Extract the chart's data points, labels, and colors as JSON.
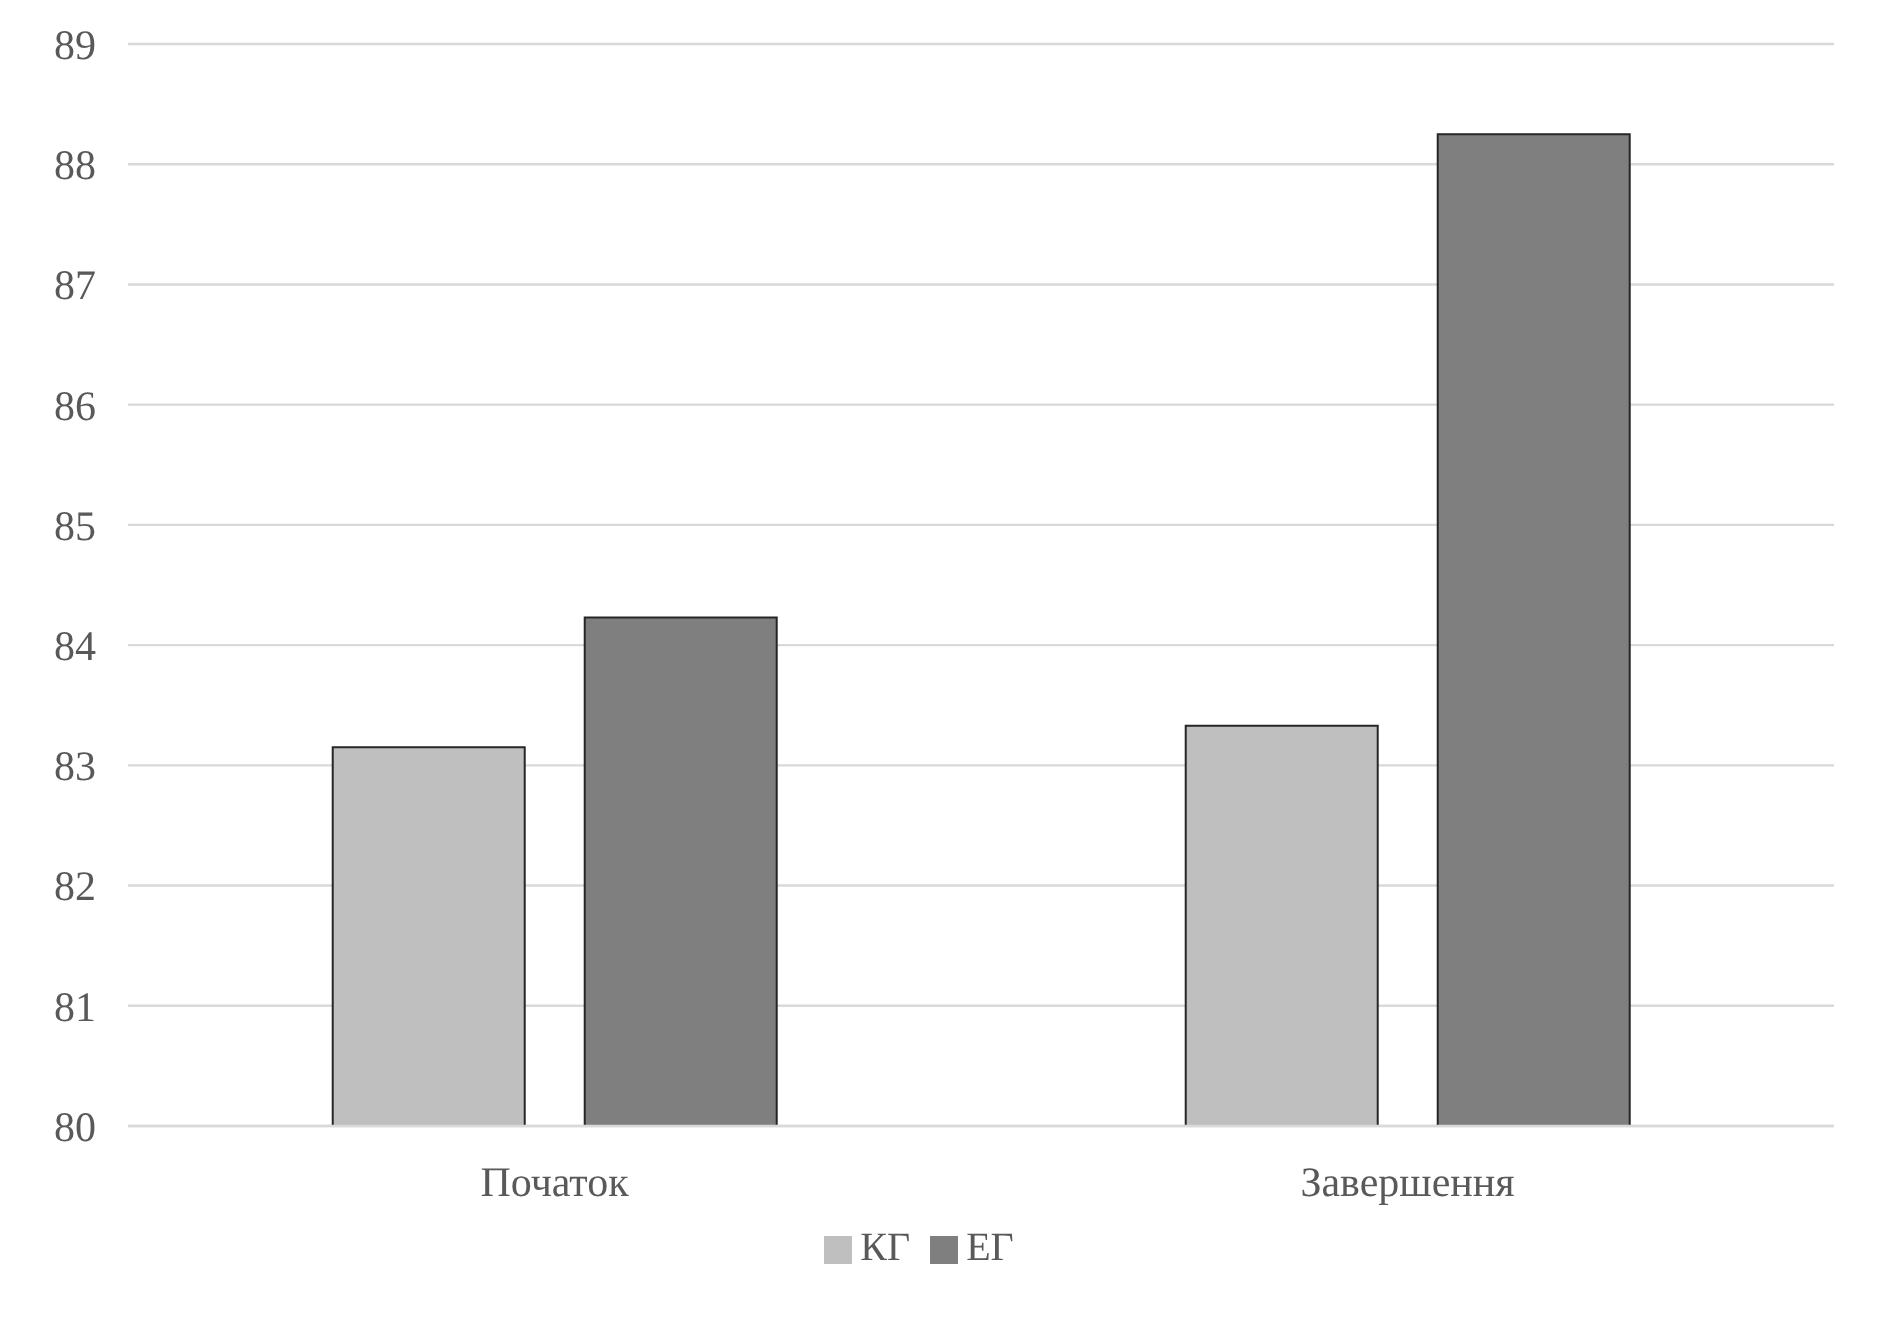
{
  "chart_data": {
    "type": "bar",
    "categories": [
      "Початок",
      "Завершення"
    ],
    "series": [
      {
        "name": "КГ",
        "color": "#bfbfbf",
        "values": [
          83.15,
          83.33
        ]
      },
      {
        "name": "ЕГ",
        "color": "#7f7f7f",
        "values": [
          84.23,
          88.25
        ]
      }
    ],
    "ylim": [
      80,
      89
    ],
    "yticks": [
      80,
      81,
      82,
      83,
      84,
      85,
      86,
      87,
      88,
      89
    ],
    "grid": "y",
    "legend": "bottom"
  }
}
